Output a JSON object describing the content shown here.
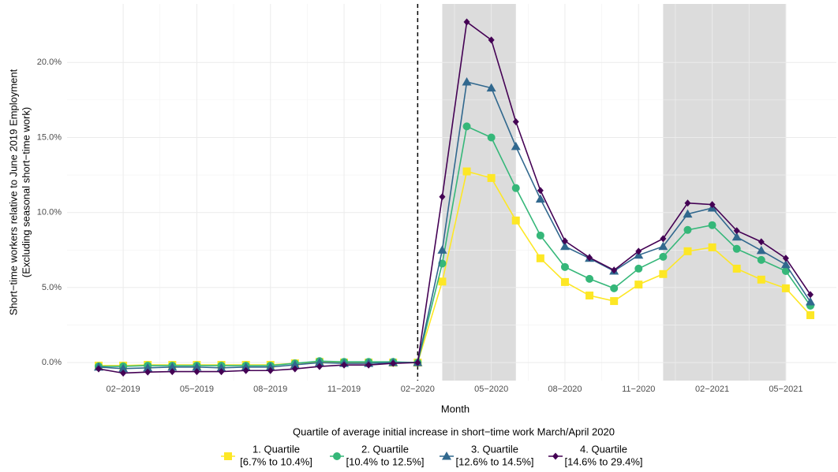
{
  "chart_data": {
    "type": "line",
    "x_label": "Month",
    "y_label": [
      "Short−time workers relative to June 2019 Employment",
      "(Excluding seasonal short−time work)"
    ],
    "categories": [
      null,
      "02−2019",
      null,
      null,
      "05−2019",
      null,
      null,
      "08−2019",
      null,
      null,
      "11−2019",
      null,
      null,
      "02−2020",
      null,
      null,
      "05−2020",
      null,
      null,
      "08−2020",
      null,
      null,
      "11−2020",
      null,
      null,
      "02−2021",
      null,
      null,
      "05−2021",
      null
    ],
    "ylim": [
      -1.2,
      23.9
    ],
    "yticks": [
      {
        "value": 0,
        "label": "0.0%"
      },
      {
        "value": 5,
        "label": "5.0%"
      },
      {
        "value": 10,
        "label": "10.0%"
      },
      {
        "value": 15,
        "label": "15.0%"
      },
      {
        "value": 20,
        "label": "20.0%"
      }
    ],
    "grid": true,
    "vline": 13,
    "shaded_x": [
      [
        14,
        17
      ],
      [
        23,
        28
      ]
    ],
    "legend_title": "Quartile of average initial increase in short−time work March/April 2020",
    "legend_position": "bottom",
    "series": [
      {
        "name": "1. Quartile",
        "sublabel": "[6.7% to 10.4%]",
        "color": "#fde725",
        "marker": "square",
        "values": [
          -0.2,
          -0.2,
          -0.15,
          -0.15,
          -0.15,
          -0.15,
          -0.15,
          -0.15,
          -0.05,
          0.05,
          0.0,
          0.0,
          0.0,
          0,
          5.4,
          12.74,
          12.3,
          9.47,
          6.95,
          5.37,
          4.47,
          4.1,
          5.2,
          5.9,
          7.42,
          7.68,
          6.26,
          5.53,
          4.95,
          3.16
        ]
      },
      {
        "name": "2. Quartile",
        "sublabel": "[10.4% to 12.5%]",
        "color": "#35b779",
        "marker": "circle",
        "values": [
          -0.25,
          -0.25,
          -0.2,
          -0.2,
          -0.2,
          -0.2,
          -0.2,
          -0.2,
          -0.05,
          0.1,
          0.05,
          0.05,
          0.05,
          0,
          6.6,
          15.74,
          15.0,
          11.63,
          8.47,
          6.37,
          5.58,
          4.95,
          6.26,
          7.05,
          8.84,
          9.16,
          7.58,
          6.84,
          6.1,
          3.79
        ]
      },
      {
        "name": "3. Quartile",
        "sublabel": "[12.6% to 14.5%]",
        "color": "#31688e",
        "marker": "triangle",
        "values": [
          -0.3,
          -0.4,
          -0.35,
          -0.3,
          -0.3,
          -0.35,
          -0.3,
          -0.3,
          -0.15,
          0,
          -0.05,
          -0.05,
          0,
          0,
          7.5,
          18.7,
          18.3,
          14.4,
          10.9,
          7.74,
          6.95,
          6.1,
          7.16,
          7.74,
          9.9,
          10.3,
          8.37,
          7.47,
          6.53,
          4.05
        ]
      },
      {
        "name": "4. Quartile",
        "sublabel": "[14.6% to 29.4%]",
        "color": "#440154",
        "marker": "diamond",
        "values": [
          -0.42,
          -0.7,
          -0.63,
          -0.6,
          -0.6,
          -0.6,
          -0.53,
          -0.53,
          -0.42,
          -0.26,
          -0.16,
          -0.16,
          -0.05,
          0,
          11.05,
          22.7,
          21.5,
          16.05,
          11.47,
          8.1,
          7.0,
          6.16,
          7.42,
          8.26,
          10.63,
          10.53,
          8.79,
          8.05,
          6.95,
          4.53
        ]
      }
    ]
  }
}
